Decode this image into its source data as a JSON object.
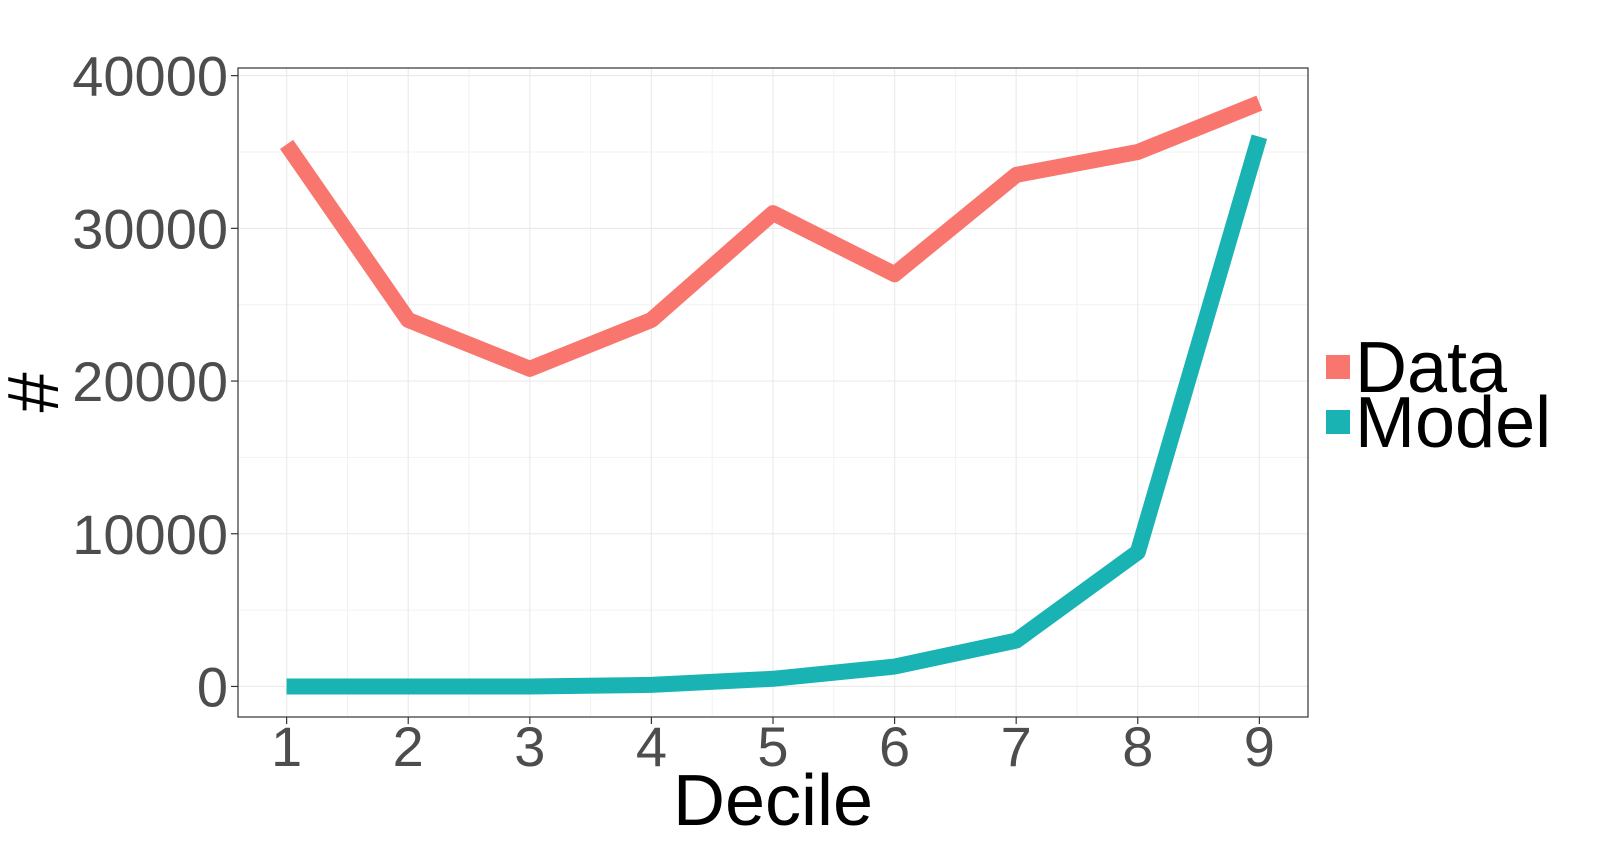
{
  "chart_data": {
    "type": "line",
    "xlabel": "Decile",
    "ylabel": "#",
    "x": [
      1,
      2,
      3,
      4,
      5,
      6,
      7,
      8,
      9
    ],
    "xlim": [
      0.6,
      9.4
    ],
    "ylim": [
      -2000,
      40500
    ],
    "yticks": [
      0,
      10000,
      20000,
      30000,
      40000
    ],
    "ytick_labels": [
      "0",
      "10000",
      "20000",
      "30000",
      "40000"
    ],
    "xtick_labels": [
      "1",
      "2",
      "3",
      "4",
      "5",
      "6",
      "7",
      "8",
      "9"
    ],
    "grid": true,
    "legend_position": "right",
    "series": [
      {
        "name": "Data",
        "color": "#F8766D",
        "values": [
          35500,
          24000,
          20800,
          24000,
          31000,
          27000,
          33500,
          35000,
          38200
        ]
      },
      {
        "name": "Model",
        "color": "#1AB3B3",
        "values": [
          0,
          0,
          0,
          100,
          500,
          1300,
          3000,
          8800,
          36000
        ]
      }
    ]
  }
}
